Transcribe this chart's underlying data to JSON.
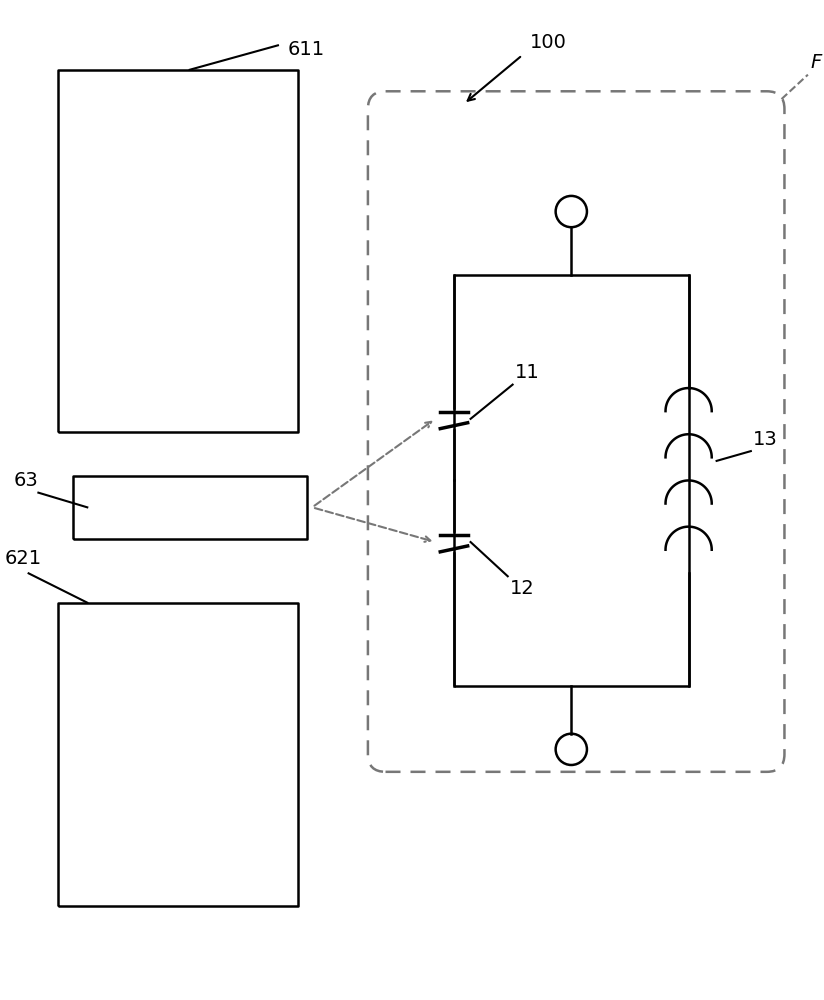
{
  "bg_color": "#ffffff",
  "line_color": "#000000",
  "dashed_color": "#777777",
  "label_611": "611",
  "label_621": "621",
  "label_63": "63",
  "label_100": "100",
  "label_F": "F",
  "label_11": "11",
  "label_12": "12",
  "label_13": "13"
}
